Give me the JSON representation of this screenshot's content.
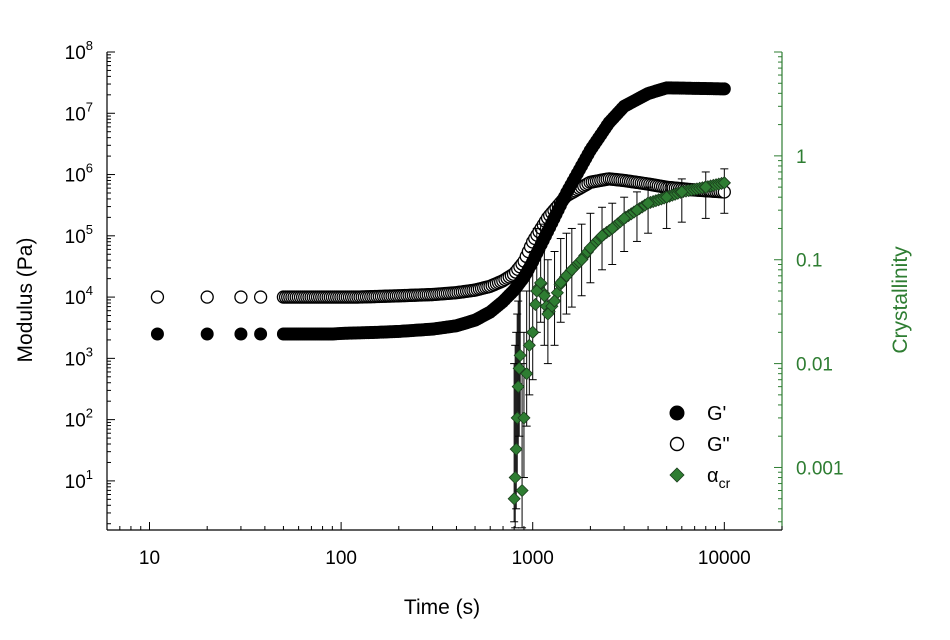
{
  "chart_data": {
    "type": "scatter",
    "xlabel": "Time (s)",
    "ylabel": "Modulus (Pa)",
    "y2label": "Crystallinity",
    "xscale": "log",
    "yscale": "log",
    "y2scale": "log",
    "xlim": [
      6,
      20000
    ],
    "ylim": [
      1.58,
      100000000
    ],
    "y2lim": [
      0.00025,
      10
    ],
    "x_ticks": [
      {
        "value": 10,
        "label": "10"
      },
      {
        "value": 100,
        "label": "100"
      },
      {
        "value": 1000,
        "label": "1000"
      },
      {
        "value": 10000,
        "label": "10000"
      }
    ],
    "y_ticks": [
      {
        "value": 10,
        "base": "10",
        "exp": "1"
      },
      {
        "value": 100,
        "base": "10",
        "exp": "2"
      },
      {
        "value": 1000,
        "base": "10",
        "exp": "3"
      },
      {
        "value": 10000,
        "base": "10",
        "exp": "4"
      },
      {
        "value": 100000,
        "base": "10",
        "exp": "5"
      },
      {
        "value": 1000000,
        "base": "10",
        "exp": "6"
      },
      {
        "value": 10000000,
        "base": "10",
        "exp": "7"
      },
      {
        "value": 100000000,
        "base": "10",
        "exp": "8"
      }
    ],
    "y2_ticks": [
      {
        "value": 0.001,
        "label": "0.001"
      },
      {
        "value": 0.01,
        "label": "0.01"
      },
      {
        "value": 0.1,
        "label": "0.1"
      },
      {
        "value": 1,
        "label": "1"
      }
    ],
    "series": [
      {
        "name": "G'",
        "legend_label": "G'",
        "marker": "filled-circle",
        "color": "#000000",
        "axis": "left",
        "x": [
          11,
          20,
          30,
          38,
          50,
          60,
          70,
          80,
          90,
          100,
          120,
          150,
          200,
          300,
          400,
          500,
          600,
          700,
          800,
          900,
          1000,
          1200,
          1500,
          2000,
          2500,
          3000,
          4000,
          5000,
          7000,
          10000
        ],
        "y": [
          2500,
          2500,
          2500,
          2500,
          2500,
          2500,
          2500,
          2500,
          2500,
          2550,
          2600,
          2650,
          2750,
          3000,
          3400,
          4200,
          5700,
          8500,
          13000,
          21000,
          38000,
          120000,
          500000,
          2500000,
          7000000,
          13000000,
          21000000,
          26000000,
          25500000,
          25000000
        ]
      },
      {
        "name": "G\"",
        "legend_label": "G\"",
        "marker": "open-circle",
        "color": "#000000",
        "axis": "left",
        "x": [
          11,
          20,
          30,
          38,
          50,
          60,
          70,
          80,
          90,
          100,
          120,
          150,
          200,
          300,
          400,
          500,
          600,
          700,
          800,
          900,
          1000,
          1200,
          1500,
          2000,
          2500,
          3000,
          4000,
          5000,
          7000,
          10000
        ],
        "y": [
          10000,
          10000,
          10000,
          10000,
          10000,
          10000,
          10000,
          10000,
          10000,
          10000,
          10000,
          10200,
          10500,
          11000,
          11800,
          13000,
          15000,
          18500,
          24000,
          38000,
          80000,
          200000,
          450000,
          750000,
          850000,
          800000,
          700000,
          620000,
          560000,
          520000
        ]
      },
      {
        "name": "alpha_cr",
        "legend_label": "α",
        "legend_subscript": "cr",
        "marker": "diamond",
        "color": "#2e7d32",
        "axis": "right",
        "x": [
          800,
          810,
          820,
          830,
          840,
          850,
          860,
          880,
          900,
          930,
          960,
          1000,
          1050,
          1100,
          1150,
          1200,
          1300,
          1400,
          1500,
          1600,
          1800,
          2000,
          2300,
          2600,
          3000,
          3500,
          4000,
          5000,
          6000,
          8000,
          10000
        ],
        "y": [
          0.0005,
          0.0008,
          0.0015,
          0.003,
          0.006,
          0.009,
          0.012,
          0.0006,
          0.003,
          0.008,
          0.015,
          0.02,
          0.05,
          0.06,
          0.045,
          0.03,
          0.04,
          0.06,
          0.07,
          0.08,
          0.1,
          0.13,
          0.17,
          0.2,
          0.25,
          0.3,
          0.35,
          0.4,
          0.45,
          0.5,
          0.55
        ],
        "error_low": [
          0.0003,
          0.0002,
          0.0004,
          0.0008,
          0.0015,
          0.002,
          0.003,
          0.0002,
          0.0008,
          0.0025,
          0.005,
          0.007,
          0.02,
          0.025,
          0.015,
          0.01,
          0.015,
          0.025,
          0.03,
          0.035,
          0.045,
          0.06,
          0.08,
          0.09,
          0.12,
          0.15,
          0.18,
          0.2,
          0.23,
          0.25,
          0.28
        ],
        "error_high": [
          0.01,
          0.015,
          0.02,
          0.03,
          0.04,
          0.05,
          0.06,
          0.01,
          0.02,
          0.05,
          0.08,
          0.12,
          0.2,
          0.22,
          0.15,
          0.1,
          0.12,
          0.16,
          0.18,
          0.2,
          0.22,
          0.28,
          0.32,
          0.35,
          0.4,
          0.45,
          0.5,
          0.55,
          0.6,
          0.7,
          0.75
        ]
      }
    ],
    "legend_position": "bottom-right"
  }
}
